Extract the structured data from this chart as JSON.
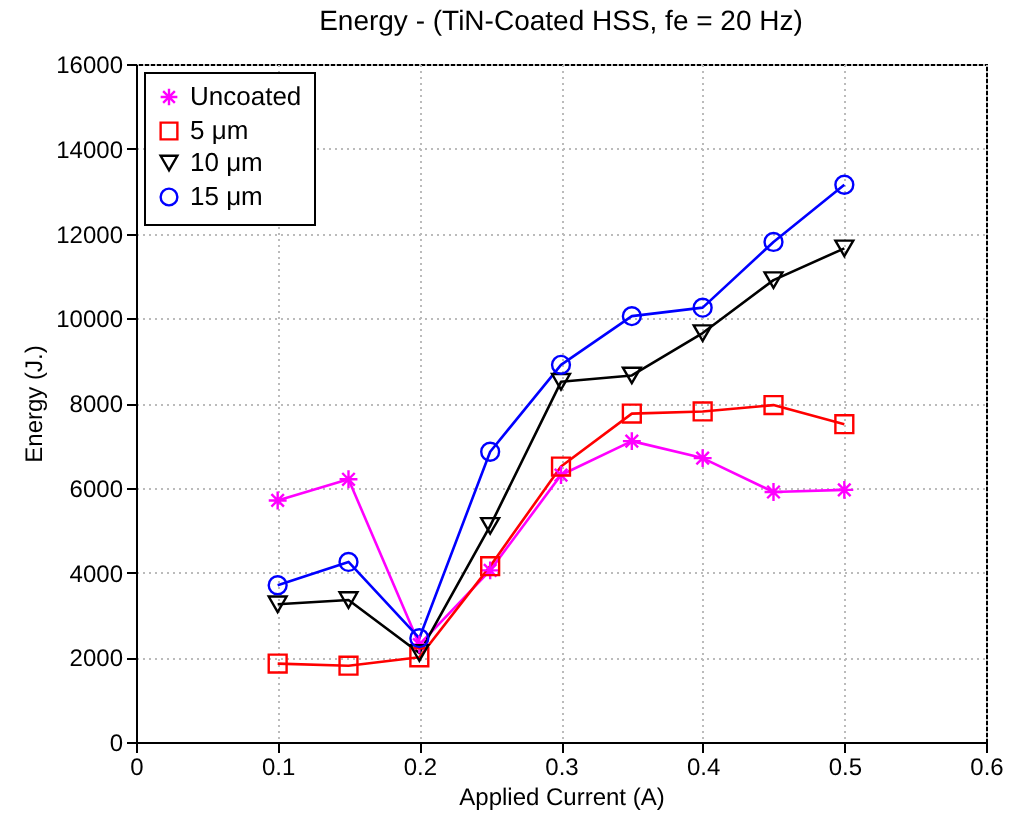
{
  "chart_data": {
    "type": "line",
    "title": "Energy - (TiN-Coated HSS, fe = 20 Hz)",
    "xlabel": "Applied Current (A)",
    "ylabel": "Energy (J.)",
    "x": [
      0.1,
      0.15,
      0.2,
      0.25,
      0.3,
      0.35,
      0.4,
      0.45,
      0.5
    ],
    "xlim": [
      0,
      0.6
    ],
    "xticks": [
      0,
      0.1,
      0.2,
      0.3,
      0.4,
      0.5,
      0.6
    ],
    "ylim": [
      0,
      16000
    ],
    "yticks": [
      0,
      2000,
      4000,
      6000,
      8000,
      10000,
      12000,
      14000,
      16000
    ],
    "grid": true,
    "legend": "top left",
    "line_style": "solid",
    "series": [
      {
        "name": "Uncoated",
        "color": "#ff00ff",
        "marker": "cross",
        "values": [
          5700,
          6200,
          2300,
          4050,
          6300,
          7100,
          6700,
          5900,
          5950
        ]
      },
      {
        "name": "5 μm",
        "color": "#ff0000",
        "marker": "square",
        "values": [
          1850,
          1800,
          2000,
          4150,
          6500,
          7750,
          7800,
          7950,
          7500
        ]
      },
      {
        "name": "10 μm",
        "color": "#000000",
        "marker": "triangle",
        "values": [
          3250,
          3350,
          2100,
          5100,
          8500,
          8650,
          9650,
          10900,
          11650
        ]
      },
      {
        "name": "15 μm",
        "color": "#0000ff",
        "marker": "circle",
        "values": [
          3700,
          4250,
          2450,
          6850,
          8900,
          10050,
          10250,
          11800,
          13150
        ]
      }
    ]
  }
}
